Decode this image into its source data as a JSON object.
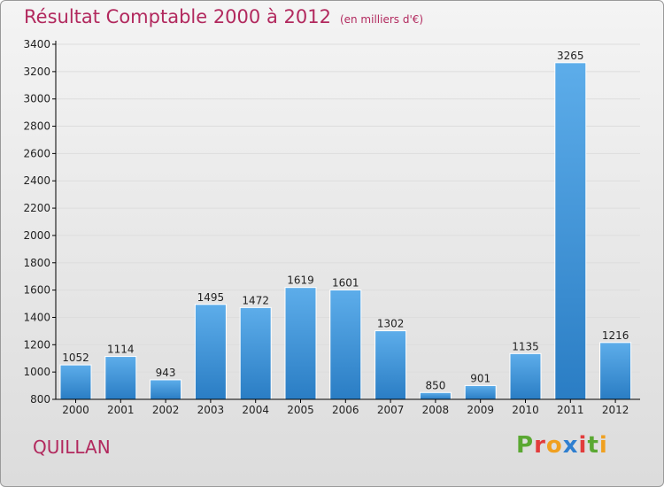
{
  "title": "Résultat Comptable 2000 à 2012",
  "subtitle": "(en milliers d'€)",
  "place": "QUILLAN",
  "brand": {
    "text": "Proxiti",
    "letters": [
      "P",
      "r",
      "o",
      "x",
      "i",
      "t",
      "i"
    ],
    "letter_colors": [
      "#5aa832",
      "#e23c3c",
      "#f0a020",
      "#2f7fd0",
      "#e23c3c",
      "#5aa832",
      "#f0a020"
    ]
  },
  "colors": {
    "title": "#b2295e",
    "bar_top": "#5dadea",
    "bar_bottom": "#2a7dc4",
    "axis": "#000000",
    "grid": "#dddddd"
  },
  "chart_data": {
    "type": "bar",
    "categories": [
      "2000",
      "2001",
      "2002",
      "2003",
      "2004",
      "2005",
      "2006",
      "2007",
      "2008",
      "2009",
      "2010",
      "2011",
      "2012"
    ],
    "values": [
      1052,
      1114,
      943,
      1495,
      1472,
      1619,
      1601,
      1302,
      850,
      901,
      1135,
      3265,
      1216
    ],
    "ylim": [
      800,
      3400
    ],
    "yticks": [
      800,
      1000,
      1200,
      1400,
      1600,
      1800,
      2000,
      2200,
      2400,
      2600,
      2800,
      3000,
      3200,
      3400
    ],
    "xlabel": "",
    "ylabel": "",
    "grid": true,
    "data_labels": true
  }
}
